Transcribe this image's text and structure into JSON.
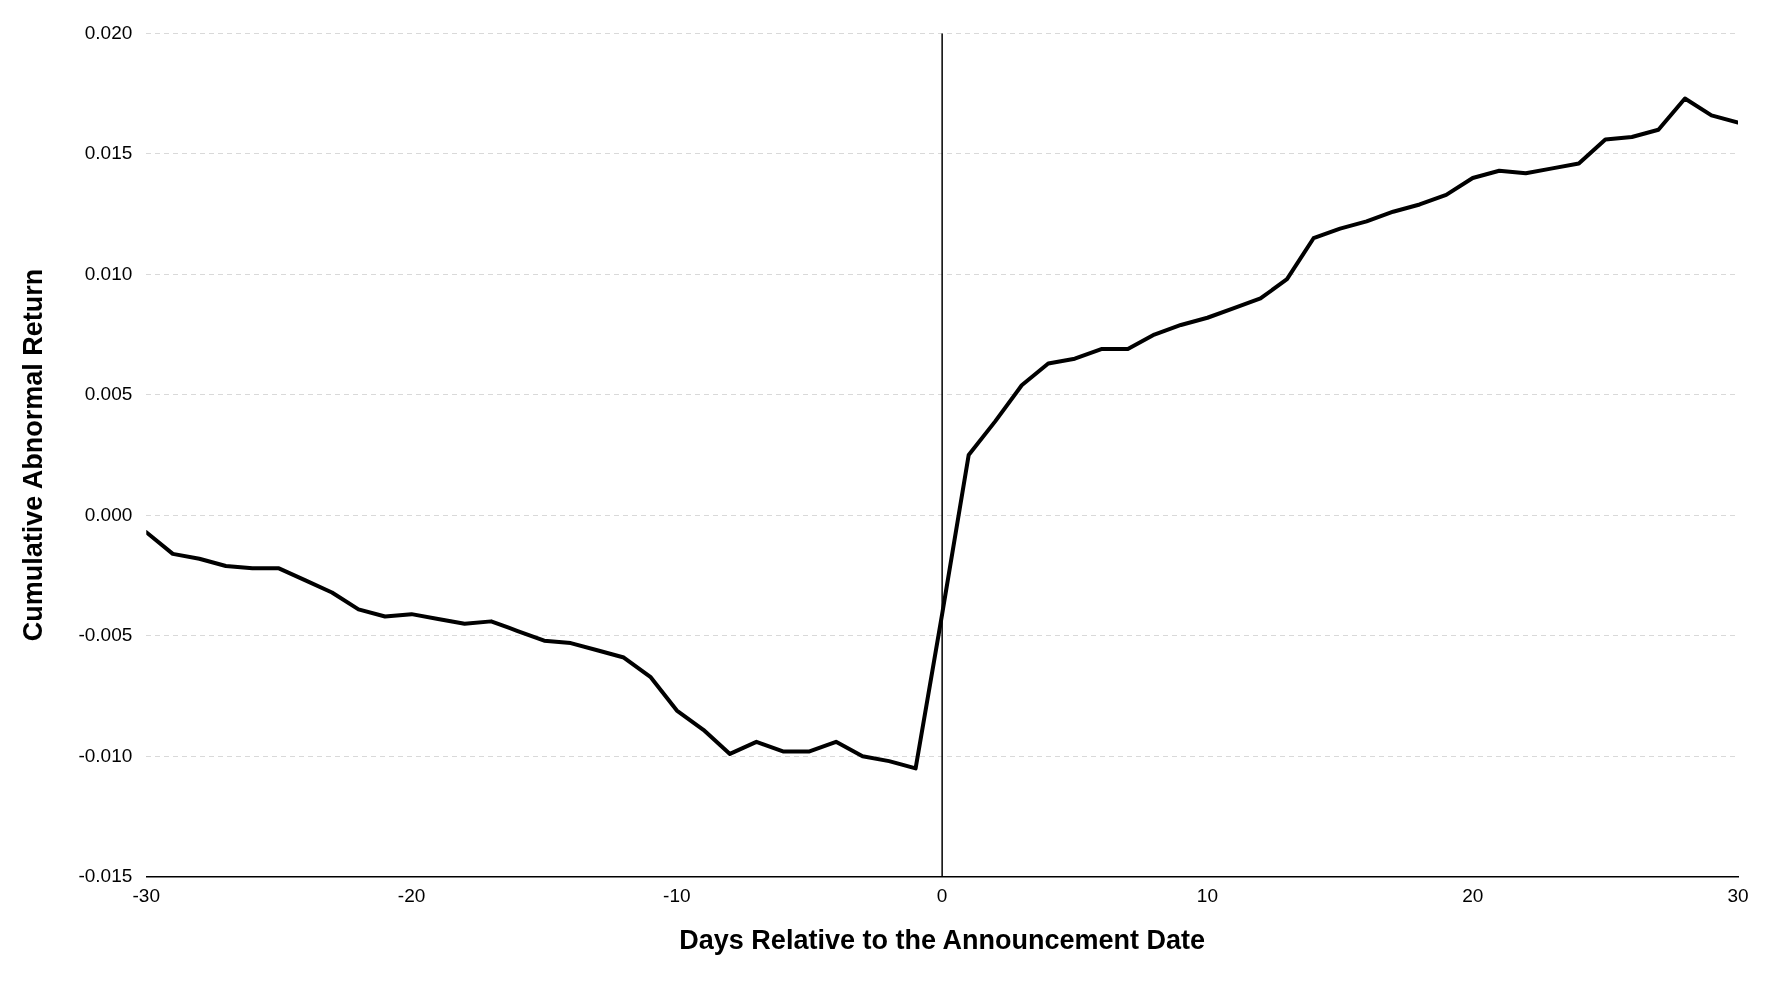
{
  "chart_data": {
    "type": "line",
    "xlabel": "Days Relative to the Announcement Date",
    "ylabel": "Cumulative Abnormal Return",
    "x": [
      -30,
      -29,
      -28,
      -27,
      -26,
      -25,
      -24,
      -23,
      -22,
      -21,
      -20,
      -19,
      -18,
      -17,
      -16,
      -15,
      -14,
      -13,
      -12,
      -11,
      -10,
      -9,
      -8,
      -7,
      -6,
      -5,
      -4,
      -3,
      -2,
      -1,
      0,
      1,
      2,
      3,
      4,
      5,
      6,
      7,
      8,
      9,
      10,
      11,
      12,
      13,
      14,
      15,
      16,
      17,
      18,
      19,
      20,
      21,
      22,
      23,
      24,
      25,
      26,
      27,
      28,
      29,
      30
    ],
    "series": [
      {
        "color": "#000000",
        "values": [
          -0.0007,
          -0.0016,
          -0.0018,
          -0.0021,
          -0.0022,
          -0.0022,
          -0.0027,
          -0.0032,
          -0.0039,
          -0.0042,
          -0.0041,
          -0.0043,
          -0.0045,
          -0.0044,
          -0.0048,
          -0.0052,
          -0.0053,
          -0.0056,
          -0.0059,
          -0.0067,
          -0.0081,
          -0.0089,
          -0.0099,
          -0.0094,
          -0.0098,
          -0.0098,
          -0.0094,
          -0.01,
          -0.0102,
          -0.0105,
          -0.0041,
          0.0025,
          0.0039,
          0.0054,
          0.0063,
          0.0065,
          0.0069,
          0.0069,
          0.0075,
          0.0079,
          0.0082,
          0.0086,
          0.009,
          0.0098,
          0.0115,
          0.0119,
          0.0122,
          0.0126,
          0.0129,
          0.0133,
          0.014,
          0.0143,
          0.0142,
          0.0144,
          0.0146,
          0.0156,
          0.0157,
          0.016,
          0.0173,
          0.0166,
          0.0163
        ]
      }
    ],
    "xlim": [
      -30,
      30
    ],
    "xticks": [
      -30,
      -20,
      -10,
      0,
      10,
      20,
      30
    ],
    "ylim": [
      -0.015,
      0.02
    ],
    "yticks": [
      {
        "value": -0.015,
        "label": "-0.015"
      },
      {
        "value": -0.01,
        "label": "-0.010"
      },
      {
        "value": -0.005,
        "label": "-0.005"
      },
      {
        "value": 0,
        "label": "0.000"
      },
      {
        "value": 0.005,
        "label": "0.005"
      },
      {
        "value": 0.01,
        "label": "0.010"
      },
      {
        "value": 0.015,
        "label": "0.015"
      },
      {
        "value": 0.02,
        "label": "0.020"
      }
    ],
    "ref_lines": [
      {
        "axis": "x",
        "value": 0,
        "color": "#000000"
      }
    ],
    "grid": "y",
    "legend": false,
    "marker": "none",
    "line_style": "solid"
  }
}
